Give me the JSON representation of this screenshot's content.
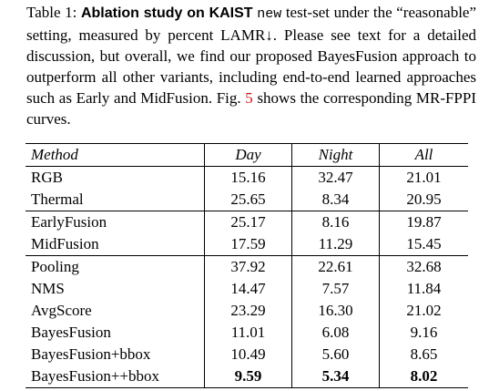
{
  "caption": {
    "label": "Table 1:",
    "bold": "Ablation study on KAIST",
    "code": "new",
    "text1": "test-set under the “reasonable” setting, measured by percent LAMR↓. Please see text for a detailed discussion, but overall, we find our proposed BayesFusion approach to outperform all other variants, including end-to-end learned approaches such as Early and MidFusion. Fig.",
    "figref": "5",
    "text2": "shows the corresponding MR-FPPI curves."
  },
  "table": {
    "header": [
      "Method",
      "Day",
      "Night",
      "All"
    ],
    "groups": [
      [
        [
          "RGB",
          "15.16",
          "32.47",
          "21.01"
        ],
        [
          "Thermal",
          "25.65",
          "8.34",
          "20.95"
        ]
      ],
      [
        [
          "EarlyFusion",
          "25.17",
          "8.16",
          "19.87"
        ],
        [
          "MidFusion",
          "17.59",
          "11.29",
          "15.45"
        ]
      ],
      [
        [
          "Pooling",
          "37.92",
          "22.61",
          "32.68"
        ],
        [
          "NMS",
          "14.47",
          "7.57",
          "11.84"
        ],
        [
          "AvgScore",
          "23.29",
          "16.30",
          "21.02"
        ],
        [
          "BayesFusion",
          "11.01",
          "6.08",
          "9.16"
        ],
        [
          "BayesFusion+bbox",
          "10.49",
          "5.60",
          "8.65"
        ],
        [
          "BayesFusion++bbox",
          "9.59",
          "5.34",
          "8.02"
        ]
      ]
    ]
  }
}
